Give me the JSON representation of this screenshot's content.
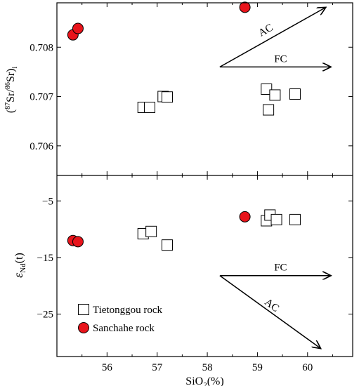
{
  "chart_data": [
    {
      "type": "scatter",
      "panel": "top",
      "ylabel": "(87Sr/86Sr)i",
      "ylim": [
        0.7054,
        0.7089
      ],
      "yticks": [
        0.706,
        0.707,
        0.708
      ],
      "ytick_labels": [
        "0.706",
        "0.707",
        "0.708"
      ],
      "series": [
        {
          "name": "Tietonggou rock",
          "marker": "open-square",
          "points": [
            {
              "x": 56.72,
              "y": 0.70678
            },
            {
              "x": 56.85,
              "y": 0.70678
            },
            {
              "x": 57.12,
              "y": 0.707
            },
            {
              "x": 57.2,
              "y": 0.70699
            },
            {
              "x": 59.18,
              "y": 0.70715
            },
            {
              "x": 59.35,
              "y": 0.70703
            },
            {
              "x": 59.75,
              "y": 0.70705
            },
            {
              "x": 59.22,
              "y": 0.70673
            }
          ]
        },
        {
          "name": "Sanchahe rock",
          "marker": "filled-circle",
          "points": [
            {
              "x": 55.32,
              "y": 0.70825
            },
            {
              "x": 55.42,
              "y": 0.70838
            },
            {
              "x": 58.75,
              "y": 0.70881
            }
          ]
        }
      ],
      "annotations": [
        {
          "label": "AC",
          "from": [
            58.25,
            0.7076
          ],
          "to": [
            60.35,
            0.7088
          ]
        },
        {
          "label": "FC",
          "from": [
            58.25,
            0.7076
          ],
          "to": [
            60.45,
            0.7076
          ]
        }
      ]
    },
    {
      "type": "scatter",
      "panel": "bottom",
      "xlabel": "SiO2(%)",
      "ylabel": "εNd(t)",
      "xlim": [
        55.0,
        60.9
      ],
      "xticks": [
        56,
        57,
        58,
        59,
        60
      ],
      "xtick_labels": [
        "56",
        "57",
        "58",
        "59",
        "60"
      ],
      "ylim": [
        -32.5,
        -0.5
      ],
      "yticks": [
        -5,
        -15,
        -25
      ],
      "ytick_labels": [
        "−5",
        "−15",
        "−25"
      ],
      "series": [
        {
          "name": "Tietonggou rock",
          "marker": "open-square",
          "points": [
            {
              "x": 56.72,
              "y": -10.8
            },
            {
              "x": 56.88,
              "y": -10.4
            },
            {
              "x": 57.2,
              "y": -12.8
            },
            {
              "x": 59.18,
              "y": -8.5
            },
            {
              "x": 59.25,
              "y": -7.5
            },
            {
              "x": 59.38,
              "y": -8.3
            },
            {
              "x": 59.75,
              "y": -8.3
            }
          ]
        },
        {
          "name": "Sanchahe rock",
          "marker": "filled-circle",
          "points": [
            {
              "x": 55.32,
              "y": -12.0
            },
            {
              "x": 55.42,
              "y": -12.2
            },
            {
              "x": 58.75,
              "y": -7.8
            }
          ]
        }
      ],
      "annotations": [
        {
          "label": "FC",
          "from": [
            58.25,
            -18.2
          ],
          "to": [
            60.45,
            -18.2
          ]
        },
        {
          "label": "AC",
          "from": [
            58.25,
            -18.2
          ],
          "to": [
            60.25,
            -31.0
          ]
        }
      ],
      "legend": {
        "position": "bottom-left",
        "entries": [
          {
            "label": "Tietonggou rock",
            "marker": "open-square"
          },
          {
            "label": "Sanchahe rock",
            "marker": "filled-circle"
          }
        ]
      }
    }
  ],
  "style": {
    "circle_fill": "#e8141b",
    "line_color": "#000000"
  }
}
